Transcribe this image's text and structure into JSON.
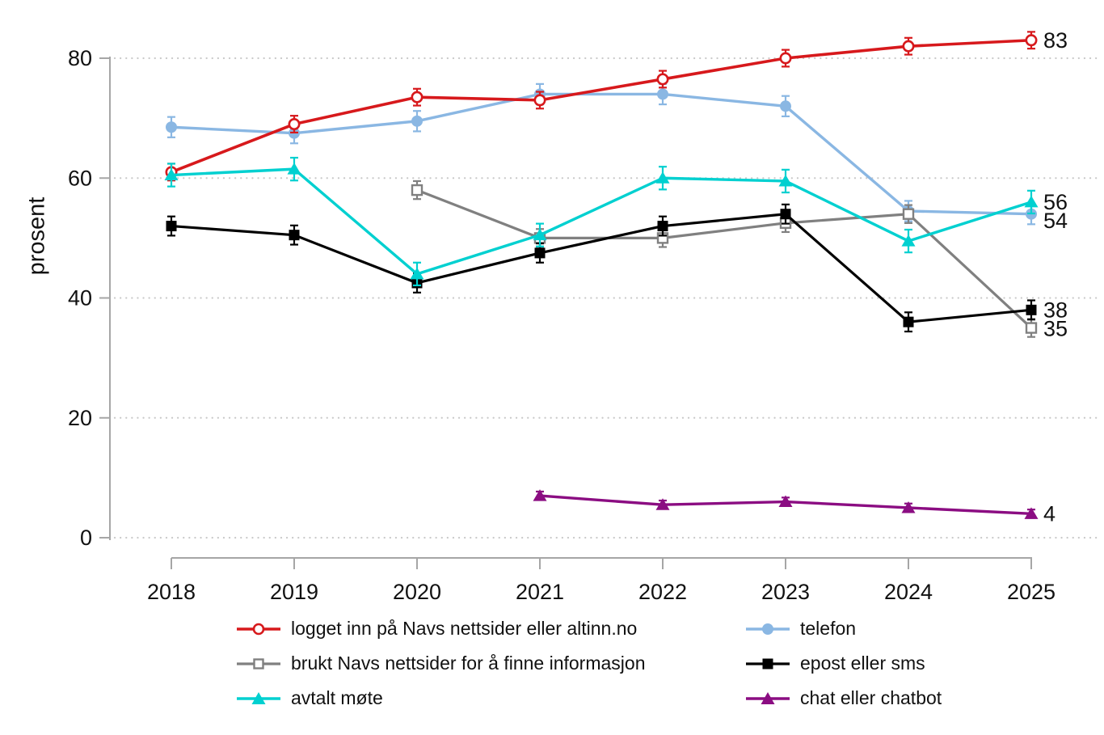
{
  "figure": {
    "title": "",
    "ylabel": "prosent",
    "x_tick_labels": [
      "2018",
      "2019",
      "2020",
      "2021",
      "2022",
      "2023",
      "2024",
      "2025"
    ],
    "y_tick_labels": [
      "0",
      "20",
      "40",
      "60",
      "80"
    ]
  },
  "chart_data": {
    "type": "line",
    "title": "",
    "xlabel": "",
    "ylabel": "prosent",
    "x": [
      2018,
      2019,
      2020,
      2021,
      2022,
      2023,
      2024,
      2025
    ],
    "y_ticks": [
      0,
      20,
      40,
      60,
      80
    ],
    "ylim": [
      0,
      86
    ],
    "grid": "dotted horizontal gridlines at each y tick",
    "error_bars": true,
    "legend_position": "below plot, two columns",
    "series": [
      {
        "name": "logget inn på Navs nettsider eller altinn.no",
        "color": "#d7191c",
        "marker": "open-circle",
        "legend_column": 1,
        "ci": 1.4,
        "end_label": "83",
        "values": [
          61,
          69,
          73.5,
          73,
          76.5,
          80,
          82,
          83
        ]
      },
      {
        "name": "brukt Navs nettsider for å finne informasjon",
        "color": "#808080",
        "marker": "open-square",
        "legend_column": 1,
        "ci": 1.5,
        "end_label": "35",
        "values": [
          null,
          null,
          58,
          50,
          50,
          52.5,
          54,
          35
        ]
      },
      {
        "name": "avtalt møte",
        "color": "#00d0d0",
        "marker": "triangle",
        "legend_column": 1,
        "ci": 1.9,
        "end_label": "56",
        "values": [
          60.5,
          61.5,
          44,
          50.5,
          60,
          59.5,
          49.5,
          56
        ]
      },
      {
        "name": "telefon",
        "color": "#8ab7e3",
        "marker": "circle",
        "legend_column": 2,
        "ci": 1.7,
        "end_label": "54",
        "values": [
          68.5,
          67.5,
          69.5,
          74,
          74,
          72,
          54.5,
          54
        ]
      },
      {
        "name": "epost eller sms",
        "color": "#000000",
        "marker": "square",
        "legend_column": 2,
        "ci": 1.6,
        "end_label": "38",
        "values": [
          52,
          50.5,
          42.5,
          47.5,
          52,
          54,
          36,
          38
        ]
      },
      {
        "name": "chat eller chatbot",
        "color": "#8b0d82",
        "marker": "triangle",
        "legend_column": 2,
        "ci": 0.7,
        "end_label": "4",
        "values": [
          null,
          null,
          null,
          7,
          5.5,
          6,
          5,
          4
        ]
      }
    ]
  }
}
